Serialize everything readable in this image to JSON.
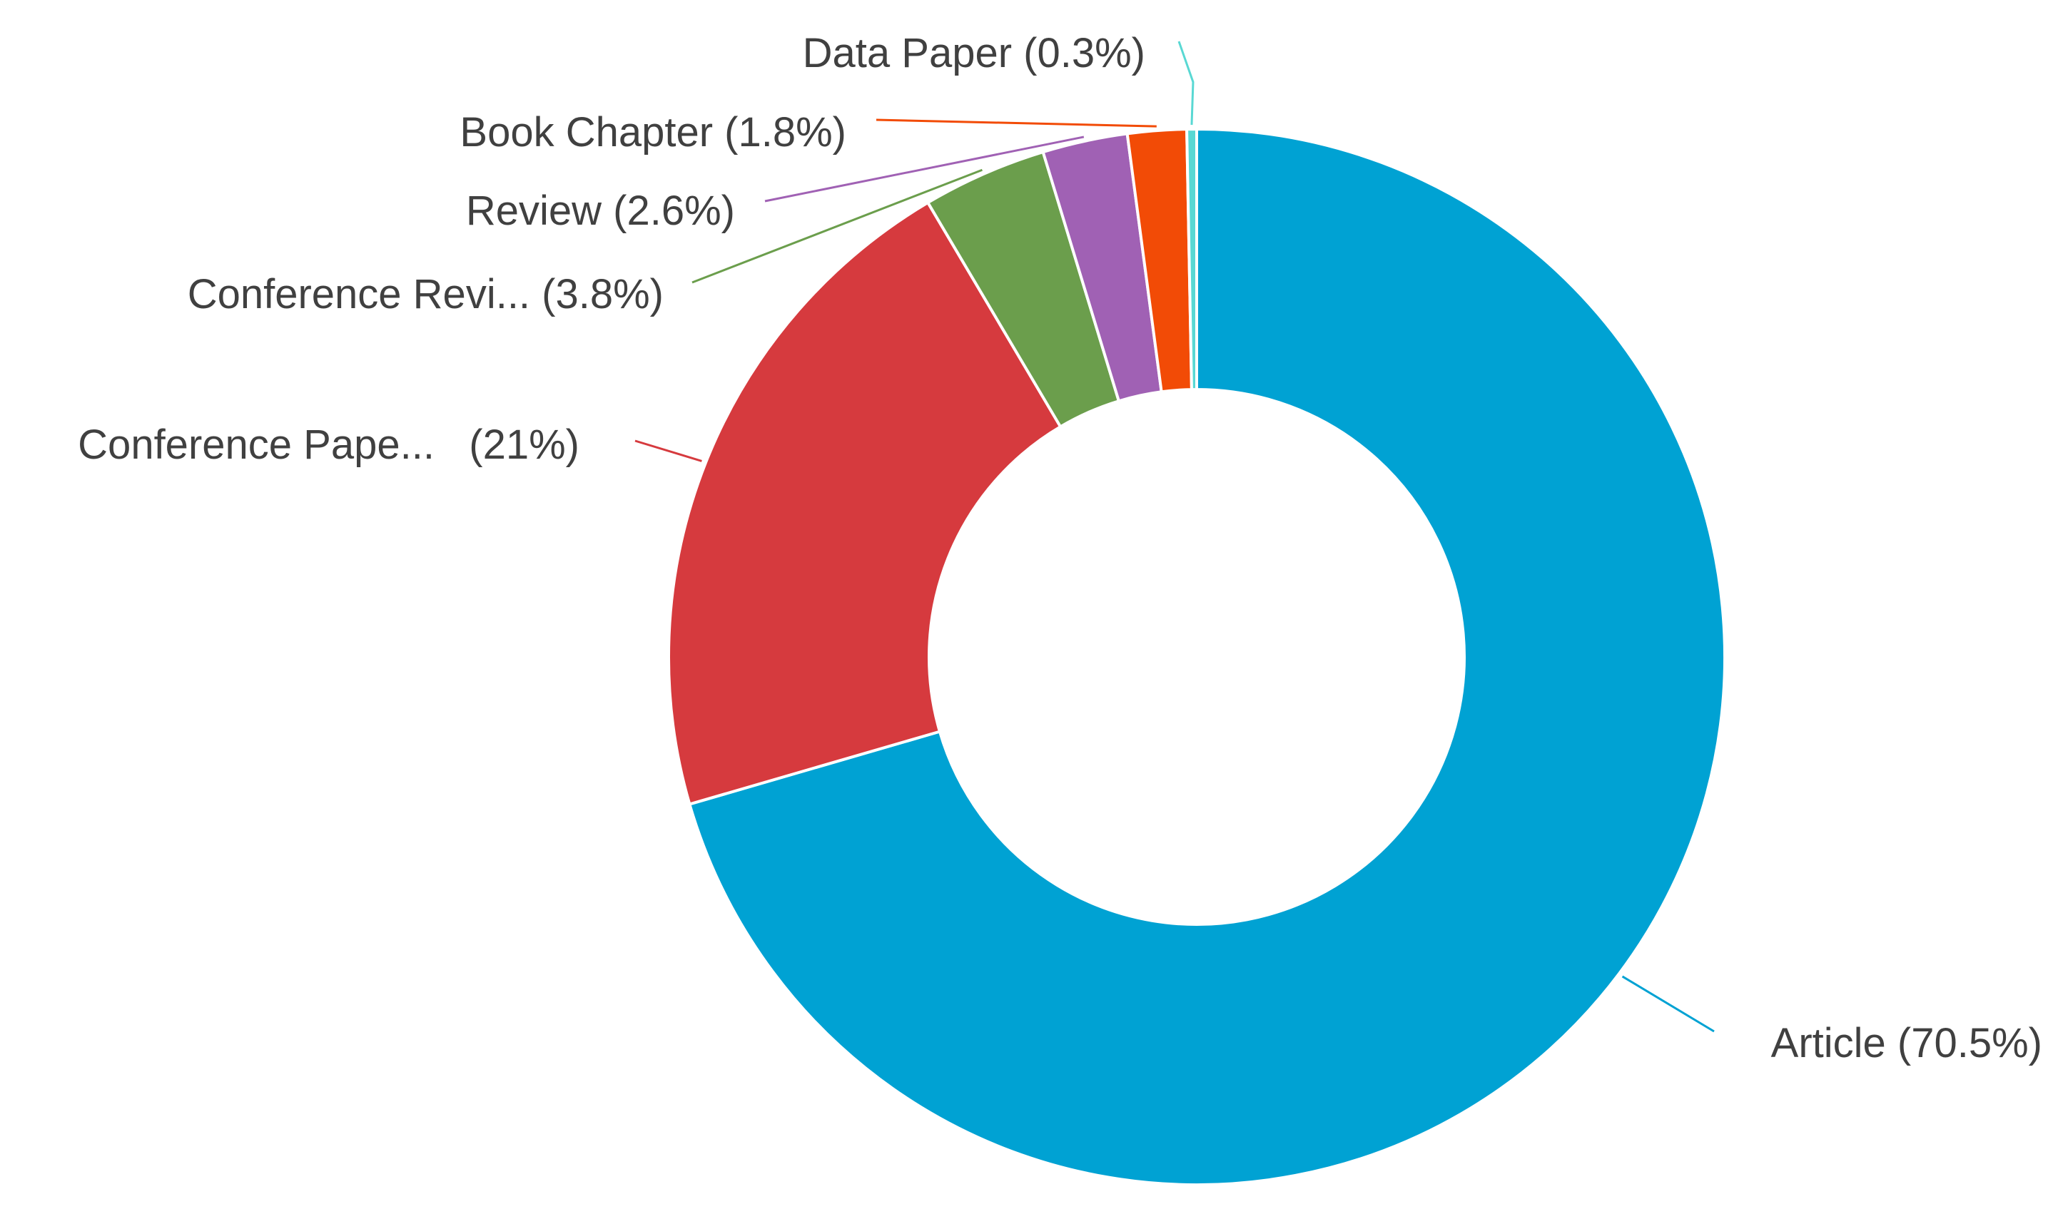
{
  "chart_data": {
    "type": "pie",
    "donut": true,
    "slices": [
      {
        "label": "Article (70.5%)",
        "value": 70.5,
        "color": "#00A2D3"
      },
      {
        "label": "Conference Pape...   (21%)",
        "value": 21,
        "color": "#D63A3E"
      },
      {
        "label": "Conference Revi... (3.8%)",
        "value": 3.8,
        "color": "#6B9E4C"
      },
      {
        "label": "Review (2.6%)",
        "value": 2.6,
        "color": "#A061B4"
      },
      {
        "label": "Book Chapter (1.8%)",
        "value": 1.8,
        "color": "#F24B06"
      },
      {
        "label": "Data Paper (0.3%)",
        "value": 0.3,
        "color": "#59D8D3"
      }
    ]
  }
}
